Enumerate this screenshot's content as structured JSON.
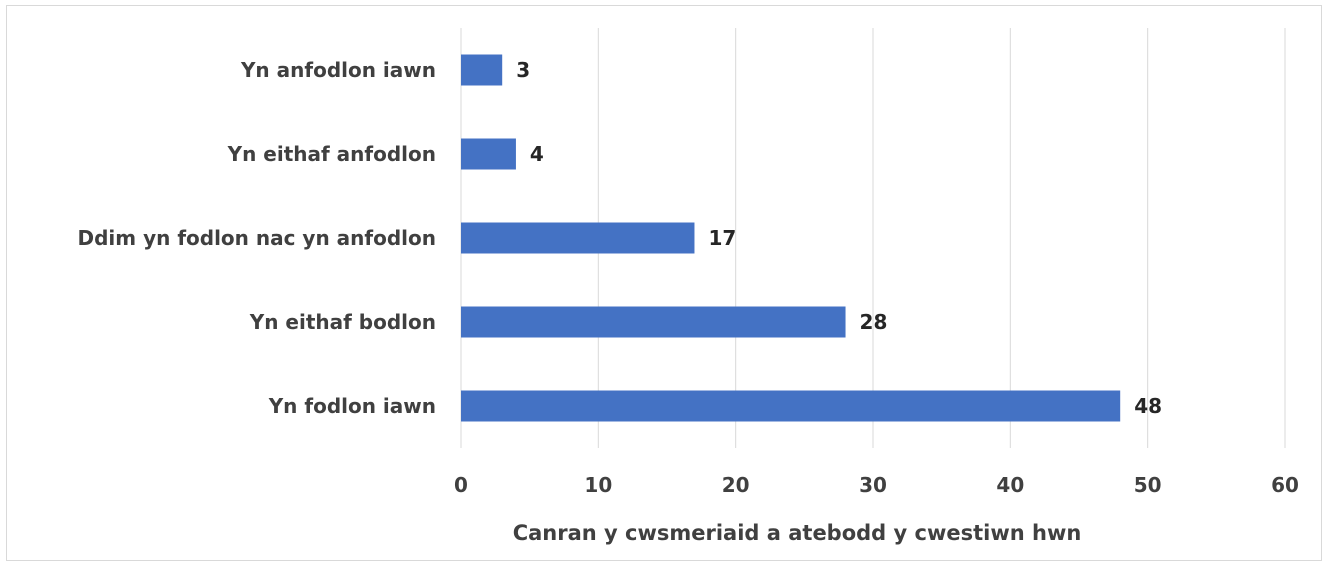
{
  "chart_data": {
    "type": "bar",
    "orientation": "horizontal",
    "categories": [
      "Yn anfodlon iawn",
      "Yn eithaf anfodlon",
      "Ddim yn fodlon nac yn anfodlon",
      "Yn eithaf bodlon",
      "Yn fodlon iawn"
    ],
    "values": [
      3,
      4,
      17,
      28,
      48
    ],
    "data_labels": [
      "3",
      "4",
      "17",
      "28",
      "48"
    ],
    "xlabel": "Canran y cwsmeriaid a atebodd y cwestiwn hwn",
    "xlim": [
      0,
      60
    ],
    "xticks": [
      0,
      10,
      20,
      30,
      40,
      50,
      60
    ],
    "grid": true,
    "legend": "none",
    "bar_color": "#4472C4"
  }
}
